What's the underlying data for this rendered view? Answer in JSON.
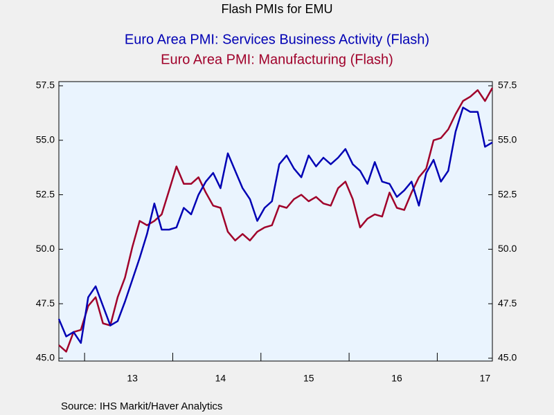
{
  "chart_data": {
    "type": "line",
    "title": "Flash PMIs for EMU",
    "source": "Source:  IHS Markit/Haver Analytics",
    "categories": [
      null,
      null,
      null,
      null,
      null,
      null,
      null,
      null,
      null,
      null,
      "13",
      null,
      null,
      null,
      null,
      null,
      null,
      null,
      null,
      null,
      null,
      null,
      "14",
      null,
      null,
      null,
      null,
      null,
      null,
      null,
      null,
      null,
      null,
      null,
      "15",
      null,
      null,
      null,
      null,
      null,
      null,
      null,
      null,
      null,
      null,
      null,
      "16",
      null,
      null,
      null,
      null,
      null,
      null,
      null,
      null,
      null,
      null,
      null,
      "17",
      null
    ],
    "series": [
      {
        "name": "Euro Area PMI: Services Business Activity (Flash)",
        "color": "#0000b4",
        "values": [
          46.8,
          46.0,
          46.2,
          45.7,
          47.8,
          48.3,
          47.4,
          46.5,
          46.7,
          47.6,
          48.6,
          49.6,
          50.7,
          52.1,
          50.9,
          50.9,
          51.0,
          51.9,
          51.6,
          52.5,
          53.1,
          53.5,
          52.8,
          54.4,
          53.6,
          52.8,
          52.3,
          51.3,
          51.9,
          52.2,
          53.9,
          54.3,
          53.7,
          53.3,
          54.3,
          53.8,
          54.2,
          53.9,
          54.2,
          54.6,
          53.9,
          53.6,
          53.0,
          54.0,
          53.1,
          53.0,
          52.4,
          52.7,
          53.1,
          52.0,
          53.5,
          54.1,
          53.1,
          53.6,
          55.4,
          56.5,
          56.3,
          56.3,
          54.7,
          54.9
        ]
      },
      {
        "name": "Euro Area PMI: Manufacturing (Flash)",
        "color": "#a0002a",
        "values": [
          45.6,
          45.3,
          46.2,
          46.3,
          47.4,
          47.8,
          46.6,
          46.5,
          47.8,
          48.7,
          50.1,
          51.3,
          51.1,
          51.3,
          51.6,
          52.7,
          53.8,
          53.0,
          53.0,
          53.3,
          52.6,
          52.0,
          51.9,
          50.8,
          50.4,
          50.7,
          50.4,
          50.8,
          51.0,
          51.1,
          52.0,
          51.9,
          52.3,
          52.5,
          52.2,
          52.4,
          52.1,
          52.0,
          52.8,
          53.1,
          52.3,
          51.0,
          51.4,
          51.6,
          51.5,
          52.6,
          51.9,
          51.8,
          52.6,
          53.3,
          53.7,
          55.0,
          55.1,
          55.5,
          56.2,
          56.8,
          57.0,
          57.3,
          56.8,
          57.4
        ]
      }
    ],
    "ylim": [
      44.87,
      57.69
    ],
    "yticks": [
      {
        "value": 45,
        "label": "45.0"
      },
      47.5,
      {
        "value": 50,
        "label": "50.0"
      },
      52.5,
      {
        "value": 55,
        "label": "55.0"
      },
      57.5
    ],
    "right_axis": true,
    "plot_background": "#eaf4fe"
  }
}
